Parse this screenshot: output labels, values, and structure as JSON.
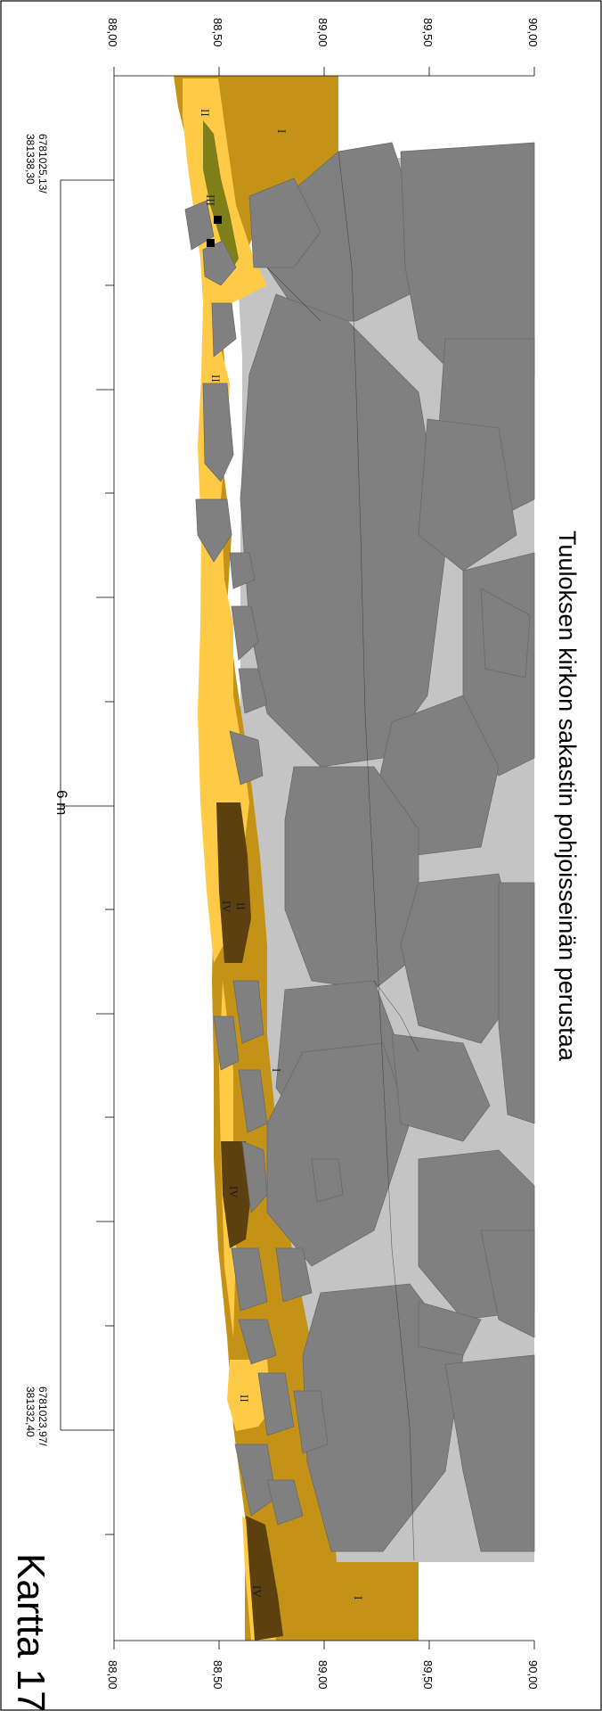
{
  "map": {
    "title": "Tuuloksen kirkon sakastin pohjoisseinän perustaa",
    "sheet_label": "Kartta 17",
    "scale_label": "6 m",
    "elevation_ticks": [
      "88,00",
      "88,50",
      "89,00",
      "89,50",
      "90,00"
    ],
    "coord_top": {
      "north": "6781025,13/",
      "east": "381338,30"
    },
    "coord_bottom": {
      "north": "6781023,97/",
      "east": "381332,40"
    },
    "layers": [
      {
        "id": "I",
        "color": "#c49216"
      },
      {
        "id": "II",
        "color": "#ffcb47"
      },
      {
        "id": "III",
        "color": "#7f7f1a"
      },
      {
        "id": "IV",
        "color": "#5c4010"
      }
    ],
    "colors": {
      "stone": "#808080",
      "stone_edge": "#606060",
      "mortar": "#c4c4c4",
      "frame": "#000000"
    }
  }
}
